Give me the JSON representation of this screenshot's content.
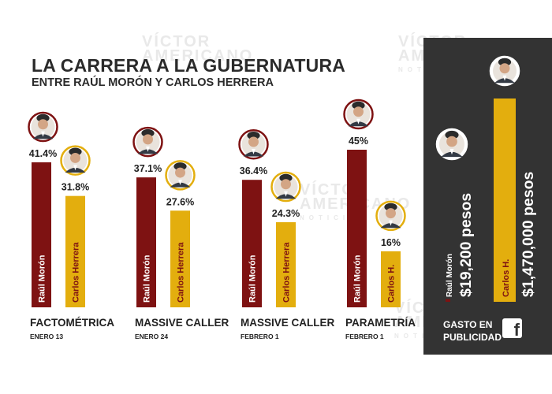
{
  "watermark": {
    "line1": "VÍCTOR",
    "line2": "AMERICANO",
    "line3": "NOTICIAS"
  },
  "header": {
    "title": "LA CARRERA A LA GUBERNATURA",
    "subtitle": "ENTRE RAÚL MORÓN Y CARLOS HERRERA"
  },
  "colors": {
    "moron": "#7e1212",
    "herrera": "#e3ae0e",
    "panel": "#333333",
    "text": "#2a2a2a"
  },
  "chart_data": [
    {
      "type": "bar",
      "title": "LA CARRERA A LA GUBERNATURA",
      "subtitle": "ENTRE RAÚL MORÓN Y CARLOS HERRERA",
      "categories": [
        {
          "pollster": "FACTOMÉTRICA",
          "date": "ENERO 13"
        },
        {
          "pollster": "MASSIVE CALLER",
          "date": "ENERO 24"
        },
        {
          "pollster": "MASSIVE CALLER",
          "date": "FEBRERO 1"
        },
        {
          "pollster": "PARAMETRÍA",
          "date": "FEBRERO 1"
        }
      ],
      "series": [
        {
          "name": "Raúl Morón",
          "values": [
            41.4,
            37.1,
            36.4,
            45
          ],
          "labels": [
            "41.4%",
            "37.1%",
            "36.4%",
            "45%"
          ],
          "bar_text": [
            "Raúl Morón",
            "Raúl Morón",
            "Raúl Morón",
            "Raúl Morón"
          ]
        },
        {
          "name": "Carlos Herrera",
          "values": [
            31.8,
            27.6,
            24.3,
            16
          ],
          "labels": [
            "31.8%",
            "27.6%",
            "24.3%",
            "16%"
          ],
          "bar_text": [
            "Carlos Herrera",
            "Carlos Herrera",
            "Carlos Herrera",
            "Carlos H."
          ]
        }
      ],
      "unit": "%"
    },
    {
      "type": "bar",
      "title": "GASTO EN PUBLICIDAD",
      "categories": [
        "Raúl Morón",
        "Carlos H."
      ],
      "values": [
        19200,
        1470000
      ],
      "labels": [
        "$19,200 pesos",
        "$1,470,000 pesos"
      ],
      "unit": "pesos"
    }
  ],
  "spend": {
    "label_line1": "GASTO EN",
    "label_line2": "PUBLICIDAD",
    "fb_glyph": "f"
  }
}
